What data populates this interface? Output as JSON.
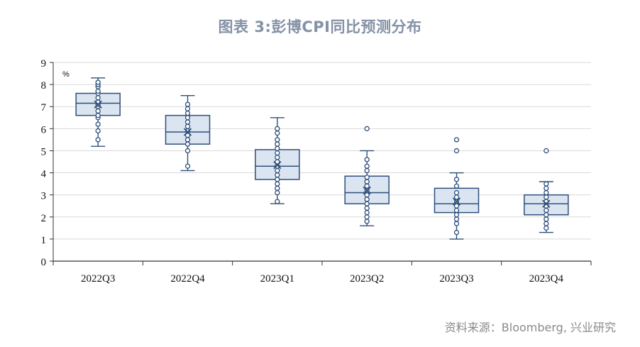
{
  "title": "图表 3:彭博CPI同比预测分布",
  "source": "资料来源：Bloomberg, 兴业研究",
  "chart_data": {
    "type": "box",
    "unit": "%",
    "ylim": [
      0,
      9
    ],
    "yticks": [
      0,
      1,
      2,
      3,
      4,
      5,
      6,
      7,
      8,
      9
    ],
    "grid": true,
    "categories": [
      "2022Q3",
      "2022Q4",
      "2023Q1",
      "2023Q2",
      "2023Q3",
      "2023Q4"
    ],
    "boxes": [
      {
        "category": "2022Q3",
        "min": 5.2,
        "q1": 6.6,
        "median": 7.15,
        "q3": 7.6,
        "max": 8.3,
        "mean": 7.1,
        "points": [
          5.5,
          5.9,
          6.2,
          6.5,
          6.6,
          6.8,
          7.0,
          7.1,
          7.2,
          7.4,
          7.6,
          7.7,
          7.9,
          8.0,
          8.1
        ]
      },
      {
        "category": "2022Q4",
        "min": 4.1,
        "q1": 5.3,
        "median": 5.85,
        "q3": 6.6,
        "max": 7.5,
        "mean": 5.85,
        "points": [
          4.3,
          5.0,
          5.3,
          5.5,
          5.7,
          5.9,
          6.1,
          6.3,
          6.5,
          6.7,
          6.9,
          7.1
        ]
      },
      {
        "category": "2023Q1",
        "min": 2.6,
        "q1": 3.7,
        "median": 4.3,
        "q3": 5.05,
        "max": 6.5,
        "mean": 4.35,
        "points": [
          2.7,
          3.1,
          3.3,
          3.5,
          3.7,
          3.9,
          4.1,
          4.3,
          4.5,
          4.7,
          4.9,
          5.1,
          5.3,
          5.5,
          5.8,
          6.0
        ]
      },
      {
        "category": "2023Q2",
        "min": 1.6,
        "q1": 2.6,
        "median": 3.1,
        "q3": 3.85,
        "max": 5.0,
        "mean": 3.2,
        "points": [
          1.8,
          2.0,
          2.2,
          2.4,
          2.6,
          2.8,
          3.0,
          3.2,
          3.4,
          3.6,
          3.8,
          4.1,
          4.3,
          4.6,
          6.0
        ]
      },
      {
        "category": "2023Q3",
        "min": 1.0,
        "q1": 2.2,
        "median": 2.6,
        "q3": 3.3,
        "max": 4.0,
        "mean": 2.7,
        "points": [
          1.3,
          1.7,
          1.9,
          2.1,
          2.3,
          2.5,
          2.7,
          2.9,
          3.1,
          3.4,
          3.7,
          5.0,
          5.5
        ]
      },
      {
        "category": "2023Q4",
        "min": 1.3,
        "q1": 2.1,
        "median": 2.6,
        "q3": 3.0,
        "max": 3.6,
        "mean": 2.6,
        "points": [
          1.5,
          1.7,
          1.9,
          2.1,
          2.3,
          2.5,
          2.7,
          2.9,
          3.1,
          3.3,
          3.5,
          5.0
        ]
      }
    ],
    "colors": {
      "box_fill": "#dbe5f1",
      "line": "#2e4f7a",
      "grid": "#d9d9d9",
      "axis": "#333333"
    }
  }
}
